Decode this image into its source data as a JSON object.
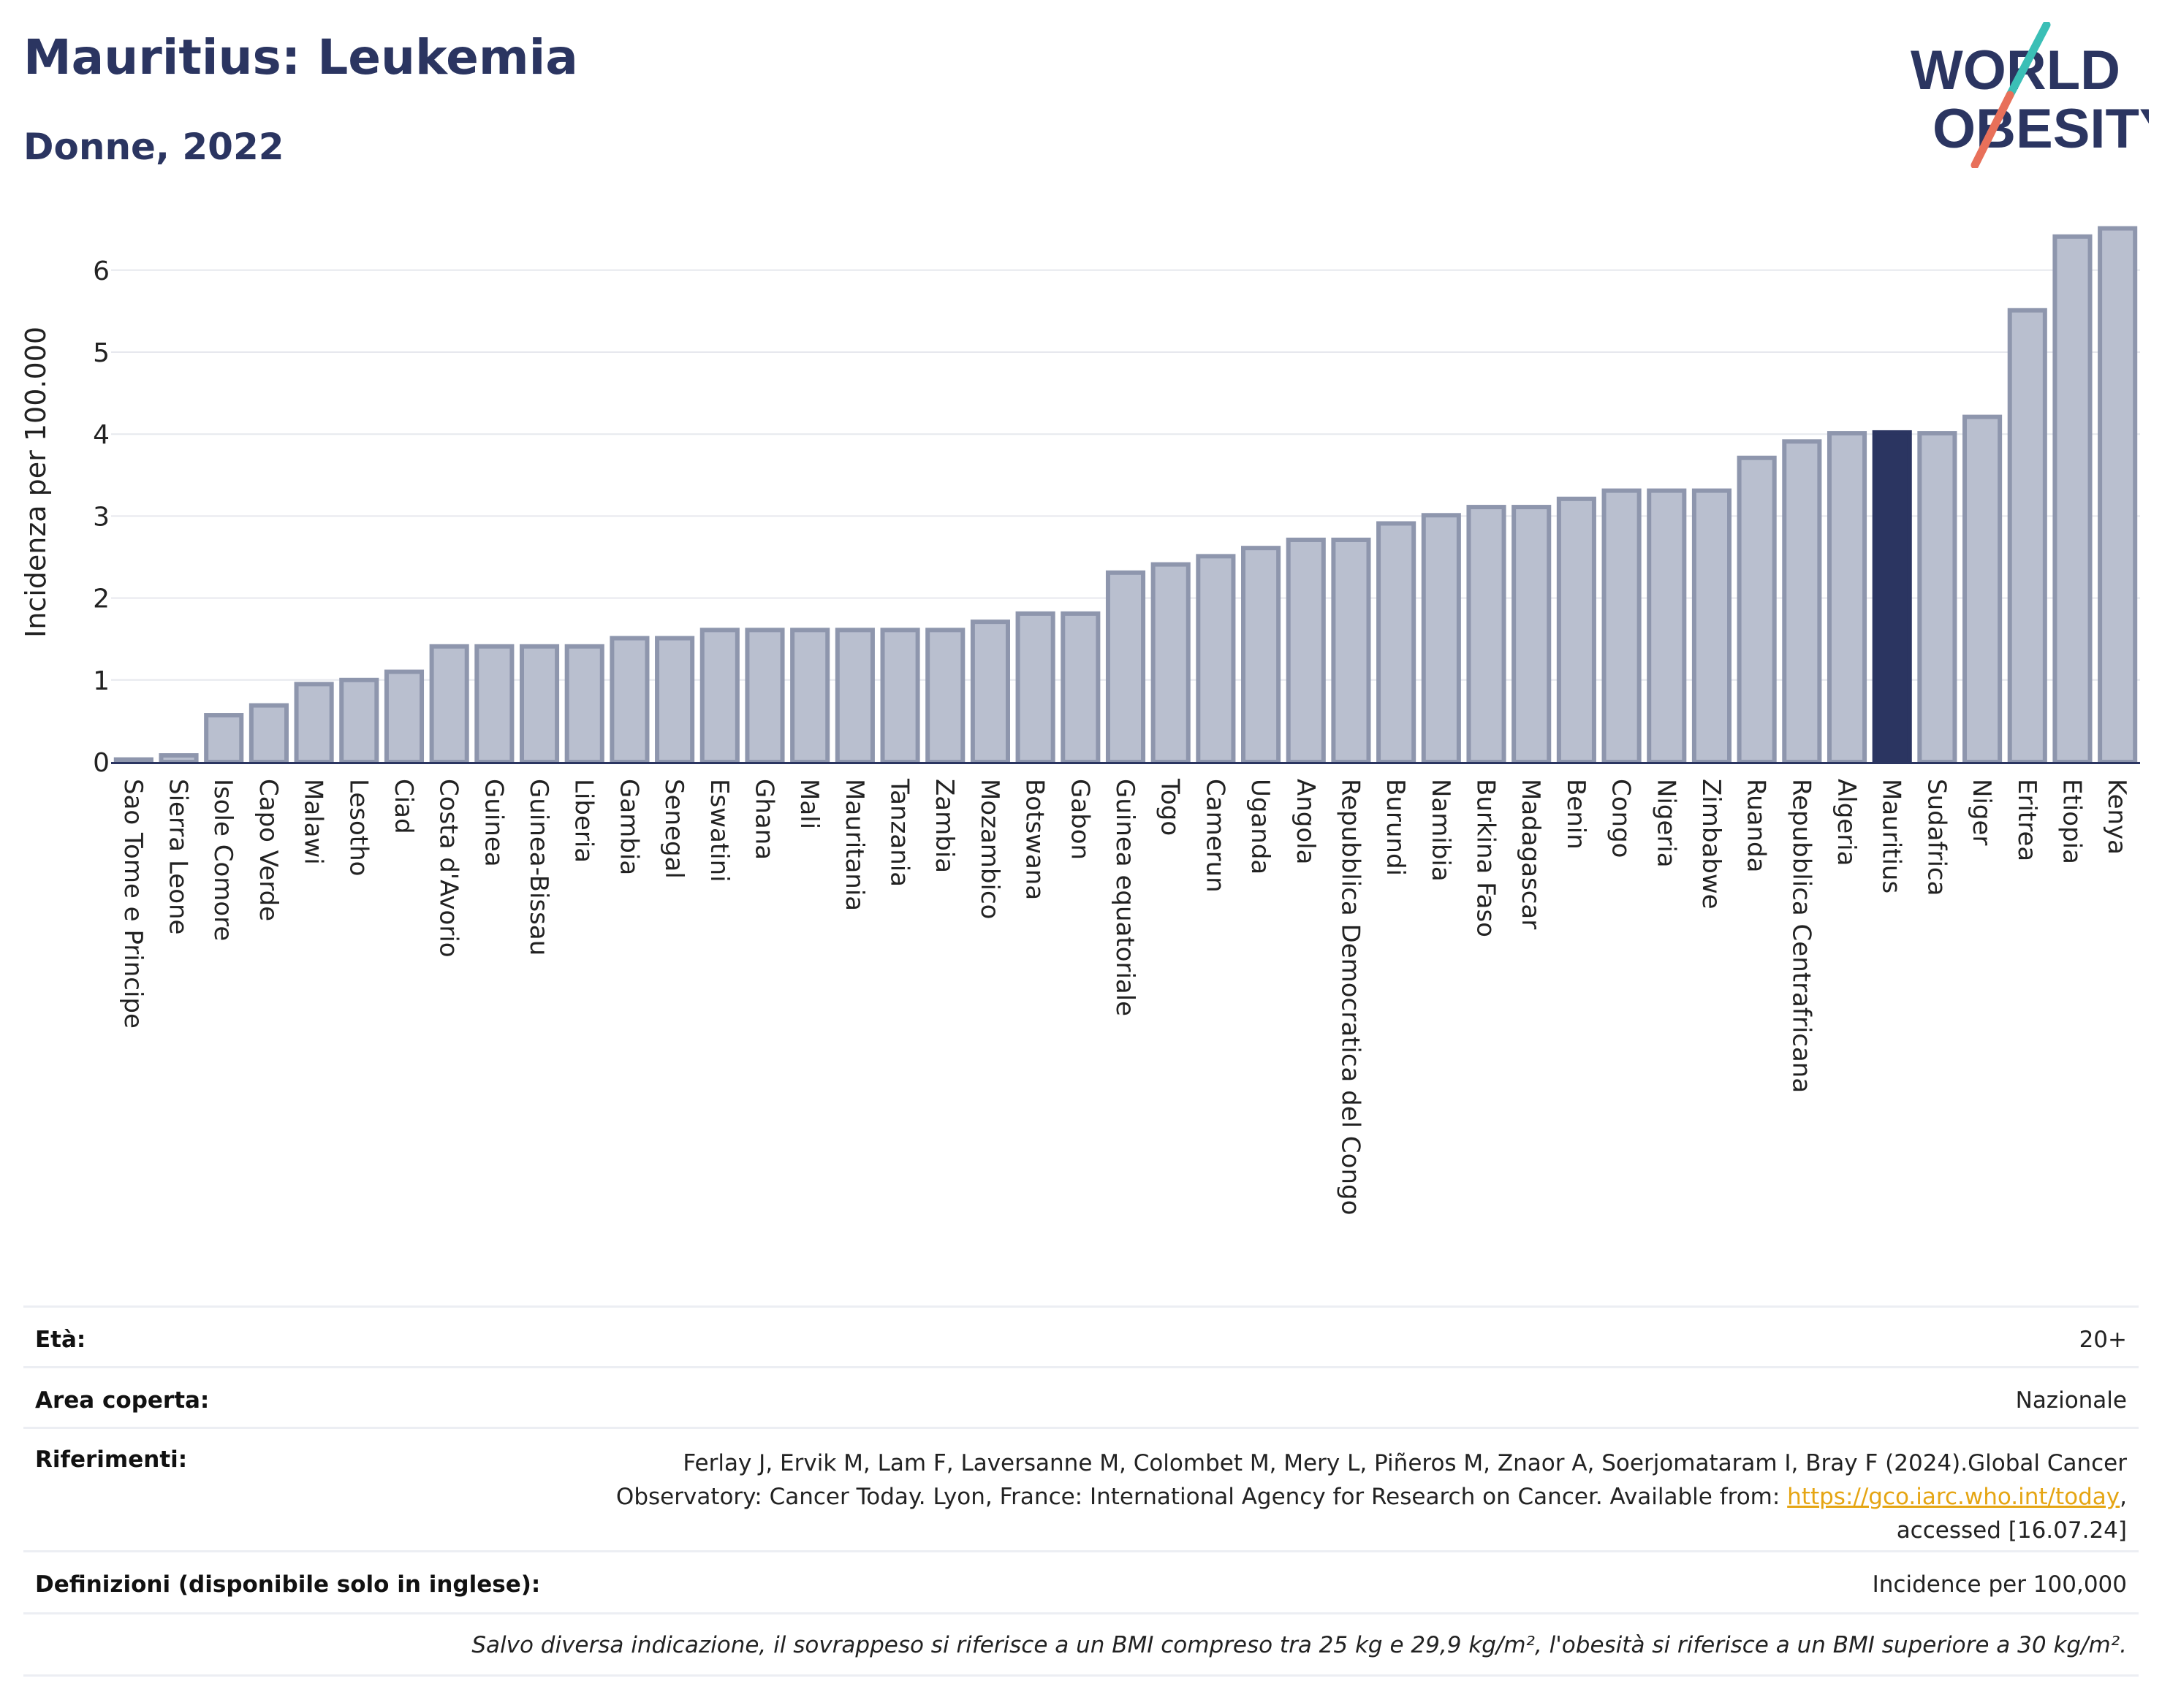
{
  "header": {
    "title": "Mauritius: Leukemia",
    "subtitle": "Donne, 2022"
  },
  "logo": {
    "line1": "WORLD",
    "line2": "OBESITY",
    "colors": {
      "navy": "#2b3561",
      "teal": "#3bbfb6",
      "coral": "#e8705a"
    }
  },
  "chart_data": {
    "type": "bar",
    "title": "Mauritius: Leukemia",
    "subtitle": "Donne, 2022",
    "ylabel": "Incidenza per 100.000",
    "xlabel": "",
    "ylim": [
      0,
      6.6
    ],
    "yticks": [
      0,
      1,
      2,
      3,
      4,
      5,
      6
    ],
    "grid": true,
    "highlight": "Mauritius",
    "colors": {
      "bar": "#b9bfcf",
      "bar_edge": "#8e96ad",
      "highlight": "#2b3561"
    },
    "categories": [
      "Sao Tome e Principe",
      "Sierra Leone",
      "Isole Comore",
      "Capo Verde",
      "Malawi",
      "Lesotho",
      "Ciad",
      "Costa d'Avorio",
      "Guinea",
      "Guinea-Bissau",
      "Liberia",
      "Gambia",
      "Senegal",
      "Eswatini",
      "Ghana",
      "Mali",
      "Mauritania",
      "Tanzania",
      "Zambia",
      "Mozambico",
      "Botswana",
      "Gabon",
      "Guinea equatoriale",
      "Togo",
      "Camerun",
      "Uganda",
      "Angola",
      "Repubblica Democratica del Congo",
      "Burundi",
      "Namibia",
      "Burkina Faso",
      "Madagascar",
      "Benin",
      "Congo",
      "Nigeria",
      "Zimbabwe",
      "Ruanda",
      "Repubblica Centrafricana",
      "Algeria",
      "Mauritius",
      "Sudafrica",
      "Niger",
      "Eritrea",
      "Etiopia",
      "Kenya"
    ],
    "values": [
      0.03,
      0.08,
      0.57,
      0.69,
      0.95,
      1.0,
      1.1,
      1.41,
      1.41,
      1.41,
      1.41,
      1.51,
      1.51,
      1.61,
      1.61,
      1.61,
      1.61,
      1.61,
      1.61,
      1.71,
      1.81,
      1.81,
      2.31,
      2.41,
      2.51,
      2.61,
      2.71,
      2.71,
      2.91,
      3.01,
      3.11,
      3.11,
      3.21,
      3.31,
      3.31,
      3.31,
      3.71,
      3.91,
      4.01,
      4.02,
      4.01,
      4.21,
      5.51,
      6.41,
      6.51
    ]
  },
  "meta": {
    "age_label": "Età:",
    "age_value": "20+",
    "area_label": "Area coperta:",
    "area_value": "Nazionale",
    "refs_label": "Riferimenti:",
    "refs_line1": "Ferlay J, Ervik M, Lam F, Laversanne M, Colombet M, Mery L, Piñeros M, Znaor A, Soerjomataram I, Bray F (2024).Global Cancer",
    "refs_line2": "Observatory: Cancer Today. Lyon, France: International Agency for Research on Cancer. Available from: ",
    "refs_link": "https://gco.iarc.who.int/today",
    "refs_line2_end": ",",
    "refs_line3": "accessed [16.07.24]",
    "defs_label": "Definizioni (disponibile solo in inglese):",
    "defs_value": "Incidence per 100,000",
    "note": "Salvo diversa indicazione, il sovrappeso si riferisce a un BMI compreso tra 25 kg e 29,9 kg/m², l'obesità si riferisce a un BMI superiore a 30 kg/m²."
  }
}
